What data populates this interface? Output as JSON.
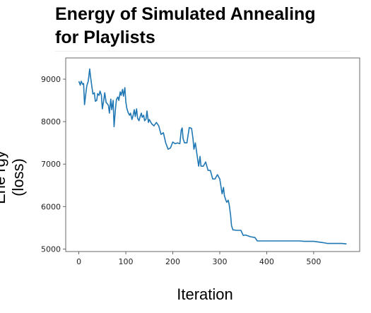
{
  "chart_data": {
    "type": "line",
    "title": "Energy of Simulated Annealing\nfor Playlists",
    "xlabel": "Iteration",
    "ylabel": "Ene rgy (loss)",
    "xlim": [
      -28,
      598
    ],
    "ylim": [
      4940,
      9500
    ],
    "xticks": [
      0,
      100,
      200,
      300,
      400,
      500
    ],
    "yticks": [
      5000,
      6000,
      7000,
      8000,
      9000
    ],
    "grid": false,
    "color": "#1f77b4",
    "series": [
      {
        "x": [
          0,
          3,
          5,
          8,
          10,
          12,
          15,
          17,
          20,
          23,
          25,
          28,
          30,
          33,
          35,
          38,
          40,
          43,
          45,
          48,
          50,
          53,
          55,
          58,
          60,
          63,
          65,
          68,
          70,
          73,
          75,
          78,
          80,
          83,
          85,
          88,
          90,
          93,
          95,
          98,
          100,
          102,
          105,
          108,
          110,
          113,
          115,
          118,
          120,
          123,
          125,
          128,
          130,
          133,
          135,
          138,
          140,
          143,
          145,
          148,
          150,
          155,
          160,
          165,
          170,
          175,
          180,
          185,
          190,
          195,
          200,
          205,
          210,
          215,
          218,
          220,
          222,
          225,
          230,
          235,
          240,
          243,
          245,
          248,
          250,
          255,
          258,
          260,
          265,
          270,
          275,
          280,
          285,
          290,
          295,
          300,
          305,
          308,
          310,
          313,
          315,
          318,
          320,
          323,
          325,
          328,
          330,
          335,
          336,
          345,
          350,
          355,
          365,
          375,
          380,
          400,
          405,
          430,
          470,
          480,
          500,
          520,
          530,
          560,
          570
        ],
        "y": [
          8950,
          8860,
          8950,
          8880,
          8900,
          8400,
          8680,
          8850,
          8950,
          9240,
          9050,
          8800,
          8650,
          8680,
          8480,
          8500,
          8660,
          8620,
          8720,
          8620,
          8300,
          8500,
          8680,
          8450,
          8430,
          8380,
          8200,
          8530,
          8280,
          8500,
          7880,
          8300,
          8520,
          8580,
          8500,
          8700,
          8620,
          8760,
          8600,
          8800,
          8460,
          8320,
          8210,
          8150,
          8200,
          8050,
          8120,
          8280,
          8120,
          8300,
          8080,
          8020,
          8100,
          8200,
          8100,
          8150,
          8020,
          8060,
          8250,
          7980,
          8050,
          7950,
          7900,
          7980,
          7900,
          7700,
          7740,
          7500,
          7350,
          7380,
          7520,
          7480,
          7500,
          7480,
          7800,
          7850,
          7600,
          7500,
          7500,
          7860,
          7840,
          7600,
          7350,
          7500,
          7350,
          6950,
          7180,
          6950,
          6950,
          7050,
          6850,
          6850,
          6650,
          6650,
          6750,
          6650,
          6300,
          6450,
          6250,
          6150,
          6100,
          6150,
          6050,
          5800,
          5550,
          5450,
          5450,
          5440,
          5440,
          5440,
          5320,
          5330,
          5290,
          5270,
          5190,
          5190,
          5190,
          5190,
          5190,
          5180,
          5180,
          5150,
          5130,
          5130,
          5120
        ]
      }
    ]
  }
}
